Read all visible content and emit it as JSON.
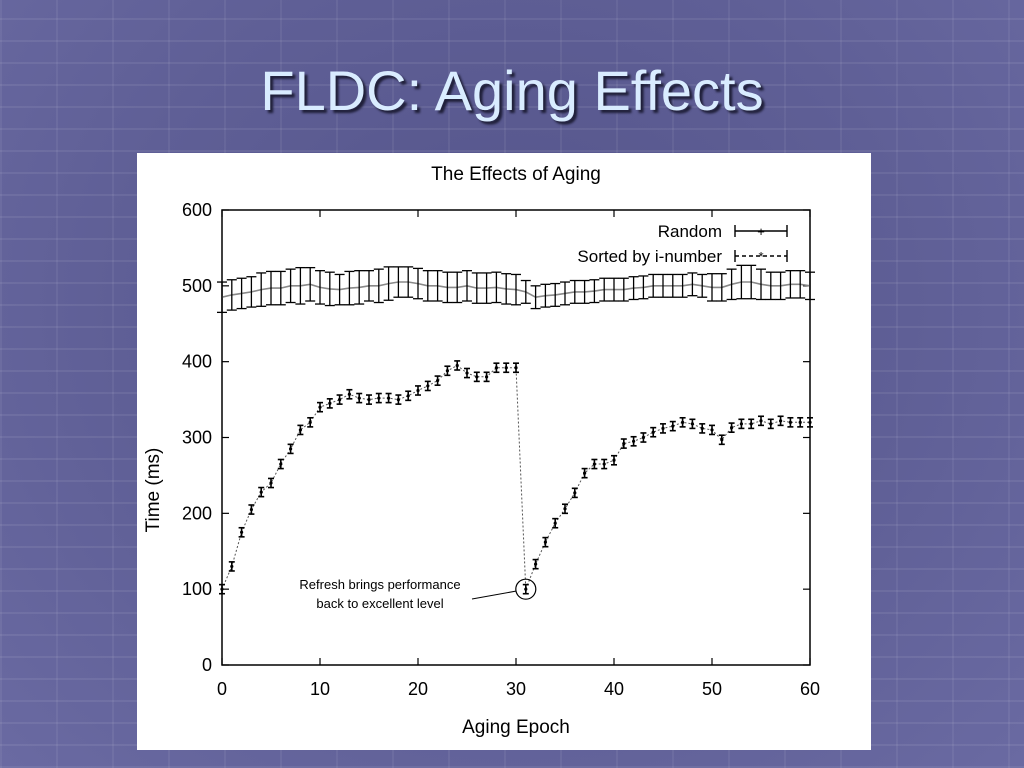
{
  "slide": {
    "title": "FLDC: Aging Effects"
  },
  "chart_data": {
    "type": "line",
    "title": "The Effects of Aging",
    "xlabel": "Aging Epoch",
    "ylabel": "Time (ms)",
    "xlim": [
      0,
      60
    ],
    "ylim": [
      0,
      600
    ],
    "xticks": [
      0,
      10,
      20,
      30,
      40,
      50,
      60
    ],
    "yticks": [
      0,
      100,
      200,
      300,
      400,
      500,
      600
    ],
    "grid": false,
    "legend_position": "top-right",
    "series": [
      {
        "name": "Random",
        "x": [
          0,
          1,
          2,
          3,
          4,
          5,
          6,
          7,
          8,
          9,
          10,
          11,
          12,
          13,
          14,
          15,
          16,
          17,
          18,
          19,
          20,
          21,
          22,
          23,
          24,
          25,
          26,
          27,
          28,
          29,
          30,
          31,
          32,
          33,
          34,
          35,
          36,
          37,
          38,
          39,
          40,
          41,
          42,
          43,
          44,
          45,
          46,
          47,
          48,
          49,
          50,
          51,
          52,
          53,
          54,
          55,
          56,
          57,
          58,
          59,
          60
        ],
        "y": [
          485,
          488,
          490,
          492,
          495,
          497,
          497,
          500,
          500,
          502,
          498,
          496,
          495,
          497,
          498,
          500,
          500,
          503,
          505,
          505,
          503,
          500,
          500,
          498,
          498,
          500,
          497,
          497,
          498,
          496,
          495,
          492,
          485,
          487,
          488,
          490,
          492,
          492,
          493,
          495,
          495,
          495,
          497,
          498,
          500,
          500,
          500,
          500,
          502,
          500,
          498,
          498,
          502,
          505,
          505,
          502,
          500,
          500,
          502,
          502,
          500
        ],
        "err": [
          20,
          20,
          20,
          20,
          22,
          22,
          22,
          22,
          24,
          22,
          22,
          22,
          20,
          22,
          22,
          20,
          22,
          22,
          20,
          20,
          20,
          20,
          20,
          20,
          20,
          20,
          20,
          20,
          20,
          20,
          20,
          15,
          15,
          15,
          15,
          15,
          15,
          15,
          15,
          15,
          15,
          15,
          15,
          15,
          15,
          15,
          15,
          15,
          15,
          15,
          18,
          18,
          20,
          22,
          22,
          20,
          18,
          18,
          18,
          18,
          18
        ]
      },
      {
        "name": "Sorted by i-number",
        "x": [
          0,
          1,
          2,
          3,
          4,
          5,
          6,
          7,
          8,
          9,
          10,
          11,
          12,
          13,
          14,
          15,
          16,
          17,
          18,
          19,
          20,
          21,
          22,
          23,
          24,
          25,
          26,
          27,
          28,
          29,
          30,
          31,
          32,
          33,
          34,
          35,
          36,
          37,
          38,
          39,
          40,
          41,
          42,
          43,
          44,
          45,
          46,
          47,
          48,
          49,
          50,
          51,
          52,
          53,
          54,
          55,
          56,
          57,
          58,
          59,
          60
        ],
        "y": [
          100,
          130,
          175,
          205,
          228,
          240,
          265,
          285,
          310,
          320,
          340,
          345,
          350,
          357,
          352,
          350,
          352,
          352,
          350,
          355,
          362,
          368,
          375,
          388,
          395,
          385,
          380,
          380,
          392,
          392,
          392,
          100,
          133,
          162,
          187,
          206,
          227,
          253,
          265,
          265,
          270,
          292,
          295,
          300,
          307,
          312,
          315,
          320,
          318,
          312,
          310,
          297,
          313,
          318,
          318,
          322,
          318,
          322,
          320,
          320,
          320
        ],
        "err": [
          6,
          6,
          6,
          6,
          6,
          6,
          6,
          6,
          6,
          6,
          6,
          6,
          6,
          6,
          6,
          6,
          6,
          6,
          6,
          6,
          6,
          6,
          6,
          6,
          6,
          6,
          6,
          6,
          6,
          6,
          6,
          6,
          6,
          6,
          6,
          6,
          6,
          6,
          6,
          6,
          6,
          6,
          6,
          6,
          6,
          6,
          6,
          6,
          6,
          6,
          6,
          6,
          6,
          6,
          6,
          6,
          6,
          6,
          6,
          6,
          6
        ]
      }
    ],
    "annotation": {
      "lines": [
        "Refresh brings performance",
        "back to excellent level"
      ],
      "x": 31,
      "y": 100
    }
  }
}
